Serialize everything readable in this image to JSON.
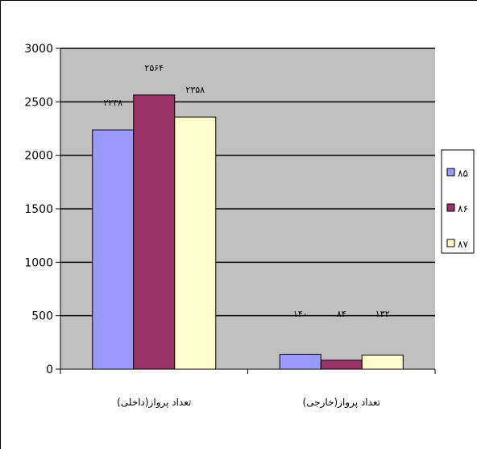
{
  "chart_data": {
    "type": "bar",
    "categories": [
      "تعداد پرواز(داخلی)",
      "تعداد پرواز(خارجی)"
    ],
    "series": [
      {
        "name": "۸۵",
        "values": [
          2238,
          140
        ],
        "labels": [
          "۲۲۳۸",
          "۱۴۰"
        ],
        "color": "#9999ff"
      },
      {
        "name": "۸۶",
        "values": [
          2564,
          84
        ],
        "labels": [
          "۲۵۶۴",
          "۸۴"
        ],
        "color": "#993366"
      },
      {
        "name": "۸۷",
        "values": [
          2358,
          132
        ],
        "labels": [
          "۲۳۵۸",
          "۱۳۲"
        ],
        "color": "#ffffcc"
      }
    ],
    "ylim": [
      0,
      3000
    ],
    "yticks": [
      0,
      500,
      1000,
      1500,
      2000,
      2500,
      3000
    ],
    "grid": true,
    "plot_background": "#c0c0c0",
    "legend_position": "right"
  }
}
